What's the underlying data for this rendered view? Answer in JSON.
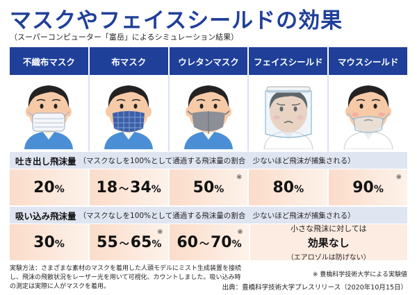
{
  "title": "マスクやフェイスシールドの効果",
  "subtitle": "（スーパーコンピューター「富岳」によるシミュレーション結果）",
  "columns": [
    {
      "label": "不織布マスク",
      "icon": "nonwoven-mask-person-icon"
    },
    {
      "label": "布マスク",
      "icon": "cloth-mask-person-icon"
    },
    {
      "label": "ウレタンマスク",
      "icon": "urethane-mask-person-icon"
    },
    {
      "label": "フェイスシールド",
      "icon": "face-shield-person-icon"
    },
    {
      "label": "マウスシールド",
      "icon": "mouth-shield-person-icon"
    }
  ],
  "exhale": {
    "title": "吐き出し飛沫量",
    "note": "（マスクなしを100%として通過する飛沫量の割合　少ないほど飛沫が捕集される）",
    "values": [
      {
        "main": "20",
        "unit": "%",
        "star": ""
      },
      {
        "from": "18",
        "to": "34",
        "unit": "%",
        "star": ""
      },
      {
        "main": "50",
        "unit": "%",
        "star": "※"
      },
      {
        "main": "80",
        "unit": "%",
        "star": ""
      },
      {
        "main": "90",
        "unit": "%",
        "star": "※"
      }
    ]
  },
  "inhale": {
    "title": "吸い込み飛沫量",
    "note": "（マスクなしを100%として通過する飛沫量の割合　少ないほど飛沫が捕集される）",
    "values": [
      {
        "main": "30",
        "unit": "%",
        "star": ""
      },
      {
        "from": "55",
        "to": "65",
        "unit": "%",
        "star": "※"
      },
      {
        "from": "60",
        "to": "70",
        "unit": "%",
        "star": "※"
      }
    ],
    "shield_note": {
      "line1": "小さな飛沫に対しては",
      "line2": "効果なし",
      "line3": "（エアロゾルは防げない）"
    }
  },
  "tilde": "～",
  "method": "実験方法：さまざまな素材のマスクを着用した人頭モデルにミスト生成装置を接続し、飛沫の飛散状況をレーザー光を用いて可視化、カウントしました。吸い込み時の測定は実際に人がマスクを着用。",
  "footnote": "※ 豊橋科学技術大学による実験値",
  "source": "出典：豊橋科学技術大学プレスリリース（2020年10月15日）",
  "colors": {
    "header_blue": "#1f3f99",
    "value_bg": "#fbdcc9",
    "section_bg": "#dfe5f1"
  }
}
